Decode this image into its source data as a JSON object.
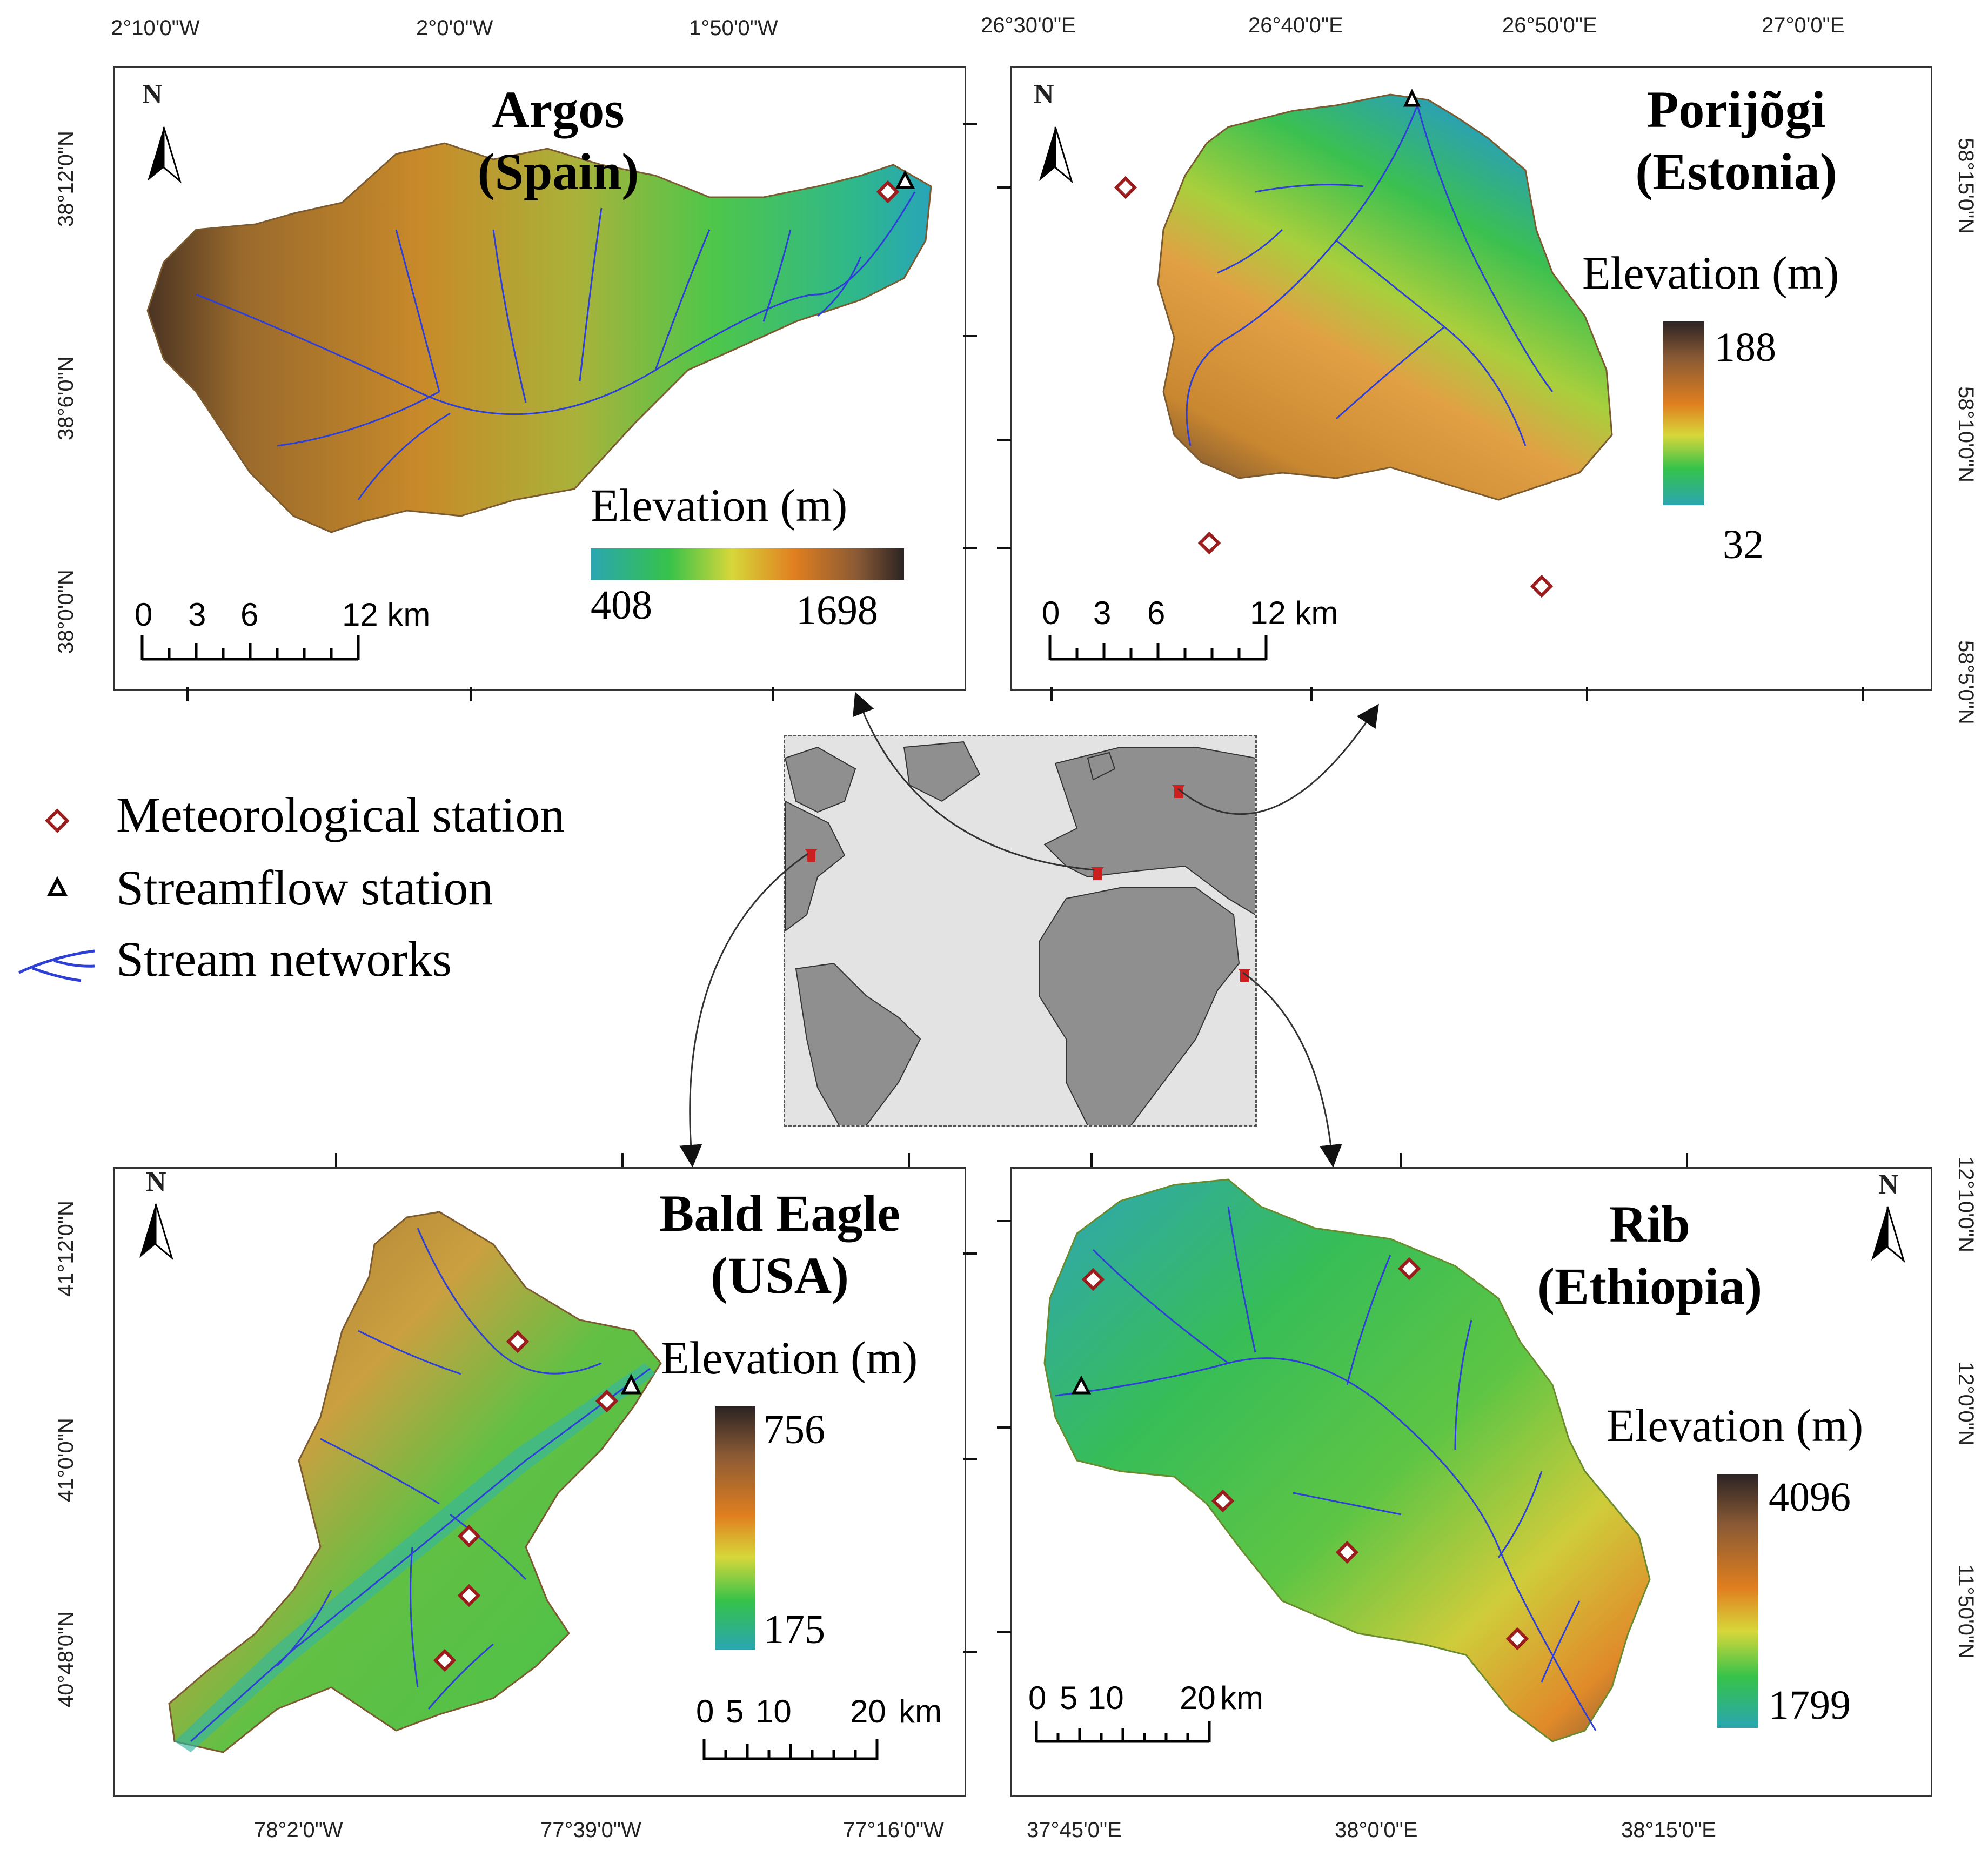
{
  "legend": {
    "meteorological": "Meteorological station",
    "streamflow": "Streamflow station",
    "streams": "Stream networks"
  },
  "panels": {
    "argos": {
      "title_line1": "Argos",
      "title_line2": "(Spain)",
      "elev_title": "Elevation (m)",
      "elev_min": "408",
      "elev_max": "1698",
      "scale": [
        "0",
        "3",
        "6",
        "12 km"
      ],
      "top_ticks": [
        "2°10'0\"W",
        "2°0'0\"W",
        "1°50'0\"W"
      ],
      "left_ticks": [
        "38°12'0\"N",
        "38°6'0\"N",
        "38°0'0\"N"
      ]
    },
    "porijogi": {
      "title_line1": "Porijõgi",
      "title_line2": "(Estonia)",
      "elev_title": "Elevation (m)",
      "elev_max": "188",
      "elev_min": "32",
      "scale": [
        "0",
        "3",
        "6",
        "12 km"
      ],
      "top_ticks": [
        "26°30'0\"E",
        "26°40'0\"E",
        "26°50'0\"E",
        "27°0'0\"E"
      ],
      "right_ticks": [
        "58°15'0\"N",
        "58°10'0\"N",
        "58°5'0\"N"
      ]
    },
    "bald_eagle": {
      "title_line1": "Bald Eagle",
      "title_line2": "(USA)",
      "elev_title": "Elevation (m)",
      "elev_max": "756",
      "elev_min": "175",
      "scale": [
        "0",
        "5",
        "10",
        "20",
        "km"
      ],
      "bottom_ticks": [
        "78°2'0\"W",
        "77°39'0\"W",
        "77°16'0\"W"
      ],
      "left_ticks": [
        "41°12'0\"N",
        "41°0'0\"N",
        "40°48'0\"N"
      ]
    },
    "rib": {
      "title_line1": "Rib",
      "title_line2": "(Ethiopia)",
      "elev_title": "Elevation (m)",
      "elev_max": "4096",
      "elev_min": "1799",
      "scale": [
        "0",
        "5",
        "10",
        "20",
        "km"
      ],
      "bottom_ticks": [
        "37°45'0\"E",
        "38°0'0\"E",
        "38°15'0\"E"
      ],
      "right_ticks": [
        "12°10'0\"N",
        "12°0'0\"N",
        "11°50'0\"N"
      ]
    }
  },
  "north_arrow": "N",
  "colors": {
    "met_station": "#9b1c1c",
    "stream": "#2e3fd6",
    "frame": "#333333",
    "land": "#8a8a8a",
    "water": "#e0e0e0",
    "pin": "#cc1f1f"
  }
}
